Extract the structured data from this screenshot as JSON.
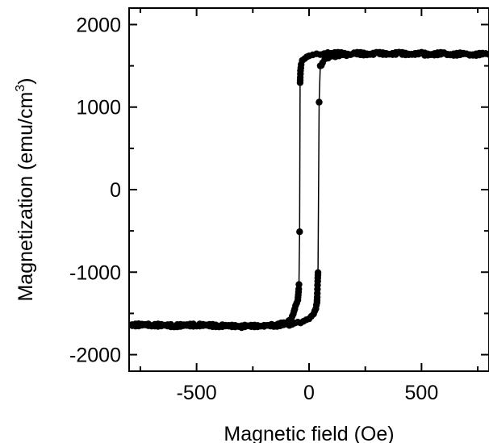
{
  "chart_data": {
    "type": "scatter",
    "title": "",
    "xlabel": "Magnetic field (Oe)",
    "ylabel_main": "Magnetization (emu/cm",
    "ylabel_sup": "3",
    "ylabel_close": ")",
    "xlim": [
      -800,
      800
    ],
    "ylim": [
      -2200,
      2200
    ],
    "xticks": [
      -500,
      0,
      500
    ],
    "xtick_labels": [
      "-500",
      "0",
      "500"
    ],
    "yticks": [
      -2000,
      -1000,
      0,
      1000,
      2000
    ],
    "ytick_labels": [
      "-2000",
      "-1000",
      "0",
      "1000",
      "2000"
    ],
    "grid": false,
    "series": [
      {
        "x": [
          -800,
          -700,
          -600,
          -500,
          -400,
          -300,
          -200,
          -150,
          -100,
          -80,
          -70,
          -60,
          -50,
          -45,
          -42,
          -40,
          -38,
          -35,
          -30,
          -20,
          0,
          50,
          100,
          200,
          300,
          400,
          500,
          600,
          700,
          800
        ],
        "y": [
          -1640,
          -1640,
          -1650,
          -1640,
          -1650,
          -1660,
          -1650,
          -1640,
          -1620,
          -1580,
          -1520,
          -1420,
          -1350,
          -1150,
          -510,
          1300,
          1450,
          1530,
          1580,
          1600,
          1630,
          1640,
          1650,
          1650,
          1650,
          1650,
          1650,
          1640,
          1640,
          1640
        ]
      },
      {
        "x": [
          800,
          700,
          600,
          500,
          400,
          300,
          200,
          150,
          100,
          70,
          60,
          55,
          50,
          45,
          40,
          35,
          30,
          20,
          0,
          -50,
          -100,
          -200,
          -300,
          -400,
          -500,
          -600,
          -700,
          -800
        ],
        "y": [
          1640,
          1640,
          1650,
          1640,
          1650,
          1650,
          1640,
          1630,
          1620,
          1590,
          1550,
          1520,
          1500,
          1060,
          -1000,
          -1370,
          -1450,
          -1520,
          -1580,
          -1620,
          -1640,
          -1650,
          -1650,
          -1650,
          -1640,
          -1650,
          -1640,
          -1640
        ]
      }
    ]
  }
}
